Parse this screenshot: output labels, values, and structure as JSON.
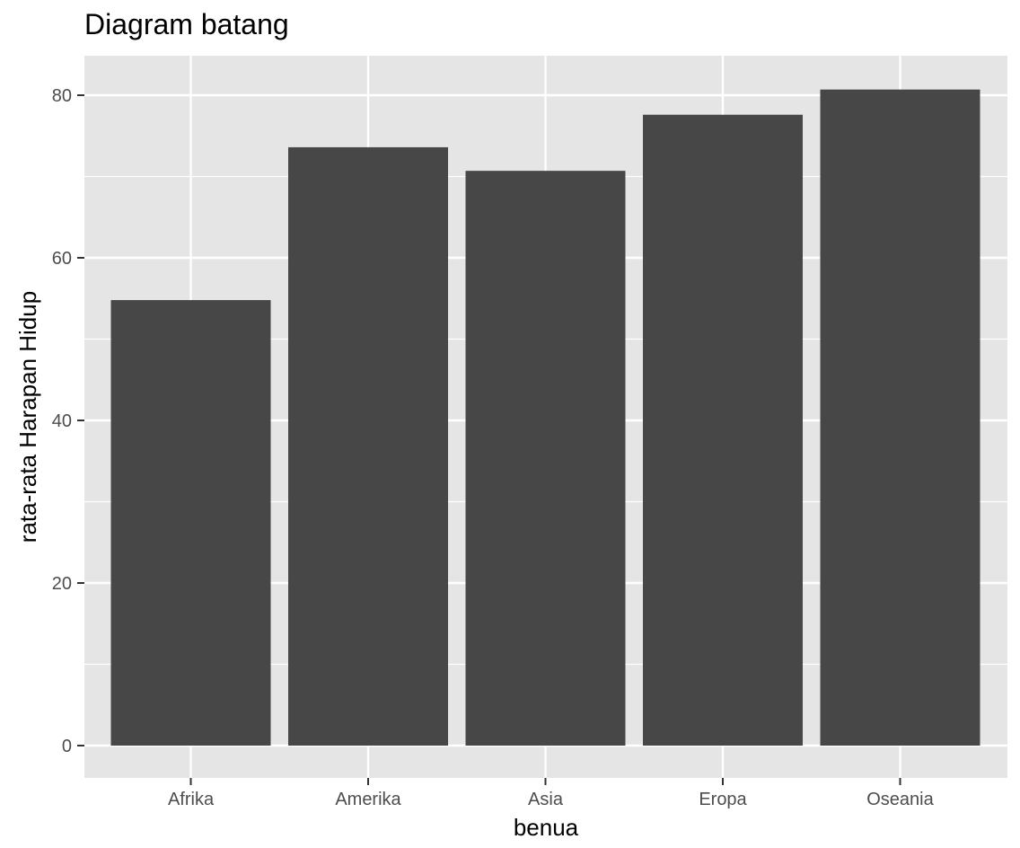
{
  "chart_data": {
    "type": "bar",
    "title": "Diagram batang",
    "xlabel": "benua",
    "ylabel": "rata-rata Harapan Hidup",
    "categories": [
      "Afrika",
      "Amerika",
      "Asia",
      "Eropa",
      "Oseania"
    ],
    "values": [
      54.8,
      73.6,
      70.7,
      77.6,
      80.7
    ],
    "ylim": [
      0,
      85
    ],
    "yticks": [
      0,
      20,
      40,
      60,
      80
    ],
    "grid": true,
    "legend": "none",
    "colors": {
      "bar": "#474747",
      "panel": "#e5e5e5",
      "grid": "#ffffff"
    }
  }
}
